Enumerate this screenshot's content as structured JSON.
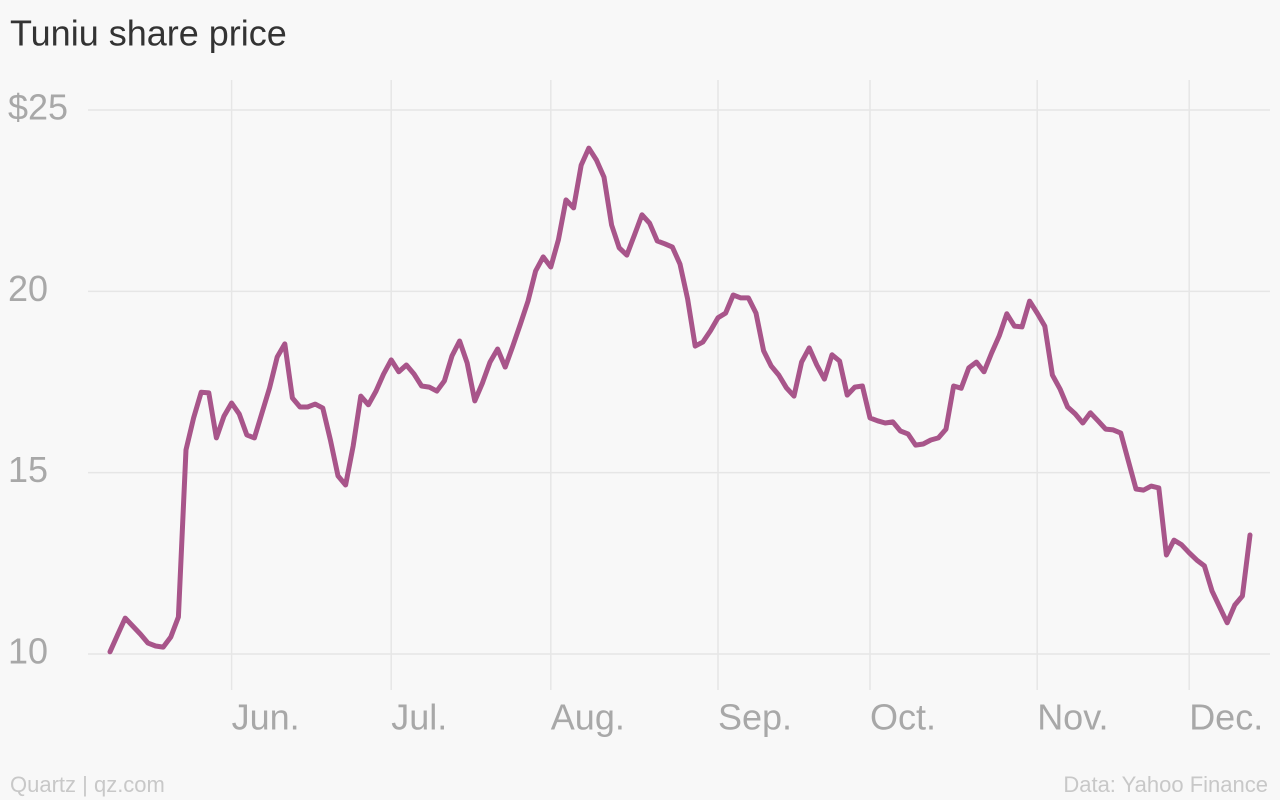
{
  "chart_data": {
    "type": "line",
    "title": "Tuniu share price",
    "source": "Quartz | qz.com",
    "credit": "Data: Yahoo Finance",
    "color": "#a8558a",
    "grid": true,
    "xlim": [
      0,
      150
    ],
    "xticks": [
      {
        "value": 16,
        "label": "Jun."
      },
      {
        "value": 37,
        "label": "Jul."
      },
      {
        "value": 58,
        "label": "Aug."
      },
      {
        "value": 80,
        "label": "Sep."
      },
      {
        "value": 100,
        "label": "Oct."
      },
      {
        "value": 122,
        "label": "Nov."
      },
      {
        "value": 142,
        "label": "Dec."
      }
    ],
    "ylim": [
      10,
      25
    ],
    "yticks": [
      10,
      15,
      20,
      {
        "value": 25,
        "label": "$25"
      }
    ],
    "values": [
      10.06,
      10.53,
      10.99,
      10.77,
      10.55,
      10.3,
      10.22,
      10.19,
      10.47,
      11.02,
      15.63,
      16.51,
      17.22,
      17.2,
      15.96,
      16.56,
      16.92,
      16.62,
      16.04,
      15.96,
      16.65,
      17.34,
      18.19,
      18.55,
      17.06,
      16.81,
      16.81,
      16.89,
      16.78,
      15.9,
      14.91,
      14.66,
      15.74,
      17.11,
      16.87,
      17.25,
      17.72,
      18.11,
      17.78,
      17.97,
      17.72,
      17.39,
      17.36,
      17.25,
      17.53,
      18.22,
      18.63,
      18.02,
      16.98,
      17.47,
      18.05,
      18.41,
      17.91,
      18.49,
      19.1,
      19.73,
      20.56,
      20.95,
      20.67,
      21.42,
      22.52,
      22.3,
      23.48,
      23.95,
      23.62,
      23.15,
      21.83,
      21.2,
      21.0,
      21.55,
      22.11,
      21.88,
      21.39,
      21.31,
      21.22,
      20.75,
      19.79,
      18.49,
      18.6,
      18.91,
      19.27,
      19.4,
      19.9,
      19.82,
      19.82,
      19.4,
      18.36,
      17.94,
      17.69,
      17.34,
      17.11,
      18.05,
      18.44,
      17.97,
      17.58,
      18.25,
      18.08,
      17.14,
      17.36,
      17.39,
      16.51,
      16.43,
      16.37,
      16.4,
      16.15,
      16.07,
      15.76,
      15.79,
      15.9,
      15.96,
      16.2,
      17.39,
      17.33,
      17.89,
      18.05,
      17.78,
      18.3,
      18.77,
      19.38,
      19.04,
      19.02,
      19.73,
      19.4,
      19.04,
      17.69,
      17.31,
      16.81,
      16.62,
      16.37,
      16.65,
      16.43,
      16.2,
      16.18,
      16.09,
      15.32,
      14.55,
      14.52,
      14.63,
      14.58,
      12.73,
      13.14,
      13.01,
      12.79,
      12.59,
      12.43,
      11.74,
      11.3,
      10.86,
      11.35,
      11.6,
      13.28
    ]
  }
}
